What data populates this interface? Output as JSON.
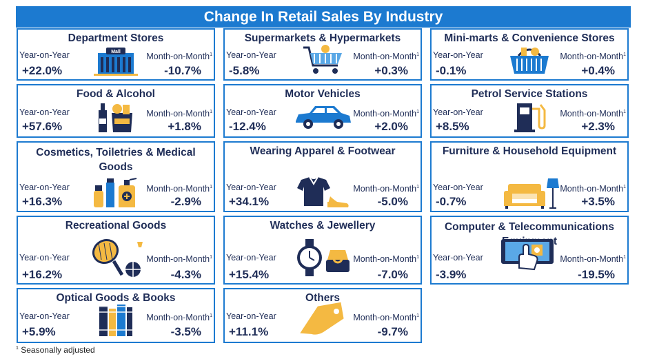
{
  "chart_data": {
    "type": "table",
    "title": "Change In Retail Sales By Industry",
    "columns": [
      "Year-on-Year",
      "Month-on-Month"
    ],
    "mom_superscript": "1",
    "footnote_mark": "1",
    "footnote": "Seasonally adjusted",
    "rows": [
      {
        "industry": "Department Stores",
        "yoy": "+22.0%",
        "mom": "-10.7%",
        "icon": "mall-building-icon"
      },
      {
        "industry": "Supermarkets & Hypermarkets",
        "yoy": "-5.8%",
        "mom": "+0.3%",
        "icon": "shopping-cart-icon"
      },
      {
        "industry": "Mini-marts & Convenience Stores",
        "yoy": "-0.1%",
        "mom": "+0.4%",
        "icon": "shopping-basket-icon"
      },
      {
        "industry": "Food & Alcohol",
        "yoy": "+57.6%",
        "mom": "+1.8%",
        "icon": "wine-and-grocery-bag-icon"
      },
      {
        "industry": "Motor Vehicles",
        "yoy": "-12.4%",
        "mom": "+2.0%",
        "icon": "car-icon"
      },
      {
        "industry": "Petrol Service Stations",
        "yoy": "+8.5%",
        "mom": "+2.3%",
        "icon": "fuel-pump-icon"
      },
      {
        "industry": "Cosmetics, Toiletries & Medical Goods",
        "yoy": "+16.3%",
        "mom": "-2.9%",
        "icon": "cosmetics-bottles-icon"
      },
      {
        "industry": "Wearing Apparel & Footwear",
        "yoy": "+34.1%",
        "mom": "-5.0%",
        "icon": "shirt-and-shoe-icon"
      },
      {
        "industry": "Furniture & Household Equipment",
        "yoy": "-0.7%",
        "mom": "+3.5%",
        "icon": "sofa-and-lamp-icon"
      },
      {
        "industry": "Recreational Goods",
        "yoy": "+16.2%",
        "mom": "-4.3%",
        "icon": "racket-and-ball-icon"
      },
      {
        "industry": "Watches & Jewellery",
        "yoy": "+15.4%",
        "mom": "-7.0%",
        "icon": "watch-and-ring-icon"
      },
      {
        "industry": "Computer & Telecommunications Equipment",
        "yoy": "-3.9%",
        "mom": "-19.5%",
        "icon": "touchscreen-hand-icon"
      },
      {
        "industry": "Optical Goods & Books",
        "yoy": "+5.9%",
        "mom": "-3.5%",
        "icon": "books-icon"
      },
      {
        "industry": "Others",
        "yoy": "+11.1%",
        "mom": "-9.7%",
        "icon": "price-tag-icon"
      }
    ]
  },
  "icon_labels": {
    "mall_sign": "Mall"
  },
  "colors": {
    "accent": "#1c7ad0",
    "navy": "#1f2d57",
    "gold": "#f4b942",
    "light_blue": "#5aa8e6"
  }
}
